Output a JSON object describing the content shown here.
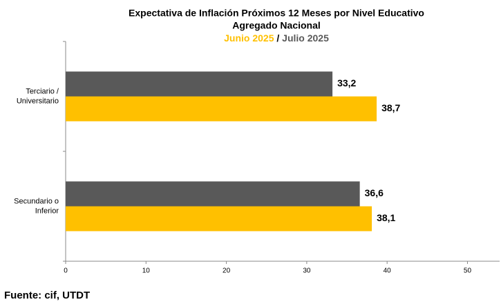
{
  "chart_data": {
    "type": "bar",
    "orientation": "horizontal",
    "title": "Expectativa de Inflación Próximos 12 Meses por Nivel Educativo",
    "subtitle": "Agregado Nacional",
    "legend_separator": "/",
    "categories": [
      "Terciario /\nUniversitario",
      "Secundario o\nInferior"
    ],
    "series": [
      {
        "name": "Julio 2025",
        "color": "#595959",
        "values": [
          33.2,
          36.6
        ],
        "value_labels": [
          "33,2",
          "36,6"
        ]
      },
      {
        "name": "Junio 2025",
        "color": "#ffc000",
        "values": [
          38.7,
          38.1
        ],
        "value_labels": [
          "38,7",
          "38,1"
        ]
      }
    ],
    "xlim": [
      0,
      54
    ],
    "xticks": [
      0,
      10,
      20,
      30,
      40,
      50
    ],
    "grid": false,
    "source": {
      "label": "Fuente:",
      "text": "cif, UTDT"
    }
  }
}
